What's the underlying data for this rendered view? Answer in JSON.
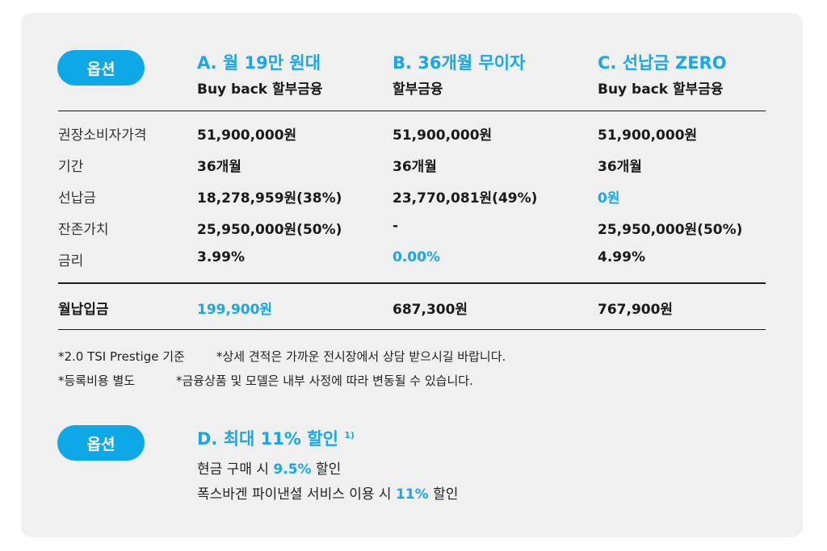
{
  "option_label": "옵션",
  "options": [
    {
      "title": "A. 월 19만 원대",
      "subtitle": "Buy back 할부금융"
    },
    {
      "title": "B. 36개월 무이자",
      "subtitle": "할부금융"
    },
    {
      "title": "C. 선납금 ZERO",
      "subtitle": "Buy back 할부금융"
    }
  ],
  "rows": [
    {
      "label": "권장소비자가격",
      "values": [
        "51,900,000원",
        "51,900,000원",
        "51,900,000원"
      ]
    },
    {
      "label": "기간",
      "values": [
        "36개월",
        "36개월",
        "36개월"
      ]
    },
    {
      "label": "선납금",
      "values": [
        "18,278,959원(38%)",
        "23,770,081원(49%)",
        "0원"
      ]
    },
    {
      "label": "잔존가치",
      "values": [
        "25,950,000원(50%)",
        "-",
        "25,950,000원(50%)"
      ]
    },
    {
      "label": "금리",
      "values": [
        "3.99%",
        "0.00%",
        "4.99%"
      ]
    }
  ],
  "total": {
    "label": "월납입금",
    "values": [
      "199,900원",
      "687,300원",
      "767,900원"
    ]
  },
  "notes": {
    "line1_a": "*2.0 TSI Prestige 기준",
    "line1_b": "*상세 견적은 가까운 전시장에서 상담 받으시길 바랍니다.",
    "line2_a": "*등록비용 별도",
    "line2_b": "*금융상품 및 모델은 내부 사정에 따라 변동될 수 있습니다."
  },
  "option_d": {
    "label": "옵션",
    "title": "D. 최대 11% 할인",
    "footnote": "1)",
    "line1_pre": "현금 구매 시 ",
    "line1_hl": "9.5%",
    "line1_post": " 할인",
    "line2_pre": "폭스바겐 파이낸셜 서비스 이용 시 ",
    "line2_hl": "11%",
    "line2_post": " 할인"
  },
  "colors": {
    "accent": "#1aa7e8",
    "pill": "#0fa8e6",
    "card": "#f0f0f0"
  }
}
